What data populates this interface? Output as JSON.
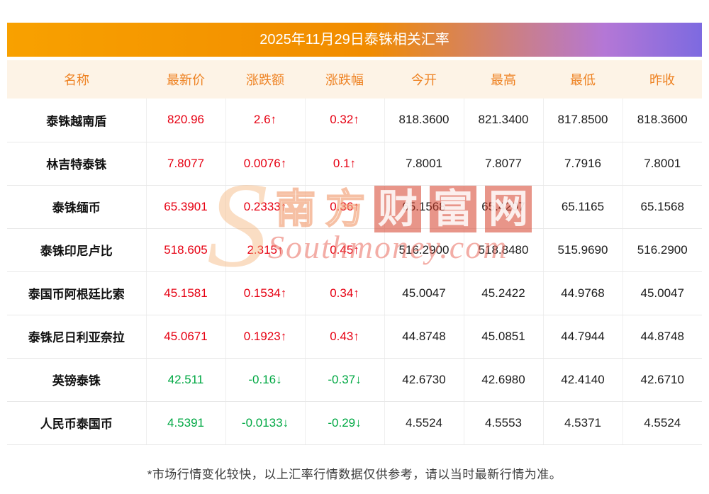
{
  "title": "2025年11月29日泰铢相关汇率",
  "table": {
    "headers": [
      "名称",
      "最新价",
      "涨跌额",
      "涨跌幅",
      "今开",
      "最高",
      "最低",
      "昨收"
    ],
    "rows": [
      {
        "name": "泰铢越南盾",
        "latest": "820.96",
        "change": "2.6↑",
        "percent": "0.32↑",
        "open": "818.3600",
        "high": "821.3400",
        "low": "817.8500",
        "prev_close": "818.3600",
        "direction": "up"
      },
      {
        "name": "林吉特泰铢",
        "latest": "7.8077",
        "change": "0.0076↑",
        "percent": "0.1↑",
        "open": "7.8001",
        "high": "7.8077",
        "low": "7.7916",
        "prev_close": "7.8001",
        "direction": "up"
      },
      {
        "name": "泰铢缅币",
        "latest": "65.3901",
        "change": "0.2333↑",
        "percent": "0.36↑",
        "open": "65.1568",
        "high": "65.4207",
        "low": "65.1165",
        "prev_close": "65.1568",
        "direction": "up"
      },
      {
        "name": "泰铢印尼卢比",
        "latest": "518.605",
        "change": "2.315↑",
        "percent": "0.45↑",
        "open": "516.2900",
        "high": "518.8480",
        "low": "515.9690",
        "prev_close": "516.2900",
        "direction": "up"
      },
      {
        "name": "泰国币阿根廷比索",
        "latest": "45.1581",
        "change": "0.1534↑",
        "percent": "0.34↑",
        "open": "45.0047",
        "high": "45.2422",
        "low": "44.9768",
        "prev_close": "45.0047",
        "direction": "up"
      },
      {
        "name": "泰铢尼日利亚奈拉",
        "latest": "45.0671",
        "change": "0.1923↑",
        "percent": "0.43↑",
        "open": "44.8748",
        "high": "45.0851",
        "low": "44.7944",
        "prev_close": "44.8748",
        "direction": "up"
      },
      {
        "name": "英镑泰铢",
        "latest": "42.511",
        "change": "-0.16↓",
        "percent": "-0.37↓",
        "open": "42.6730",
        "high": "42.6980",
        "low": "42.4140",
        "prev_close": "42.6710",
        "direction": "down"
      },
      {
        "name": "人民币泰国币",
        "latest": "4.5391",
        "change": "-0.0133↓",
        "percent": "-0.29↓",
        "open": "4.5524",
        "high": "4.5553",
        "low": "4.5371",
        "prev_close": "4.5524",
        "direction": "down"
      }
    ]
  },
  "footer_note": "*市场行情变化较快，以上汇率行情数据仅供参考，请以当时最新行情为准。",
  "watermark": {
    "s_glyph": "S",
    "chars": [
      "南",
      "方",
      "财",
      "富",
      "网"
    ],
    "en": "Southmoney.com"
  },
  "colors": {
    "up": "#e60012",
    "down": "#00a843",
    "header_text": "#ee8222",
    "header_bg": "#fdf3e6",
    "title_gradient_start": "#f8a100",
    "title_gradient_end": "#7d6ae0"
  }
}
